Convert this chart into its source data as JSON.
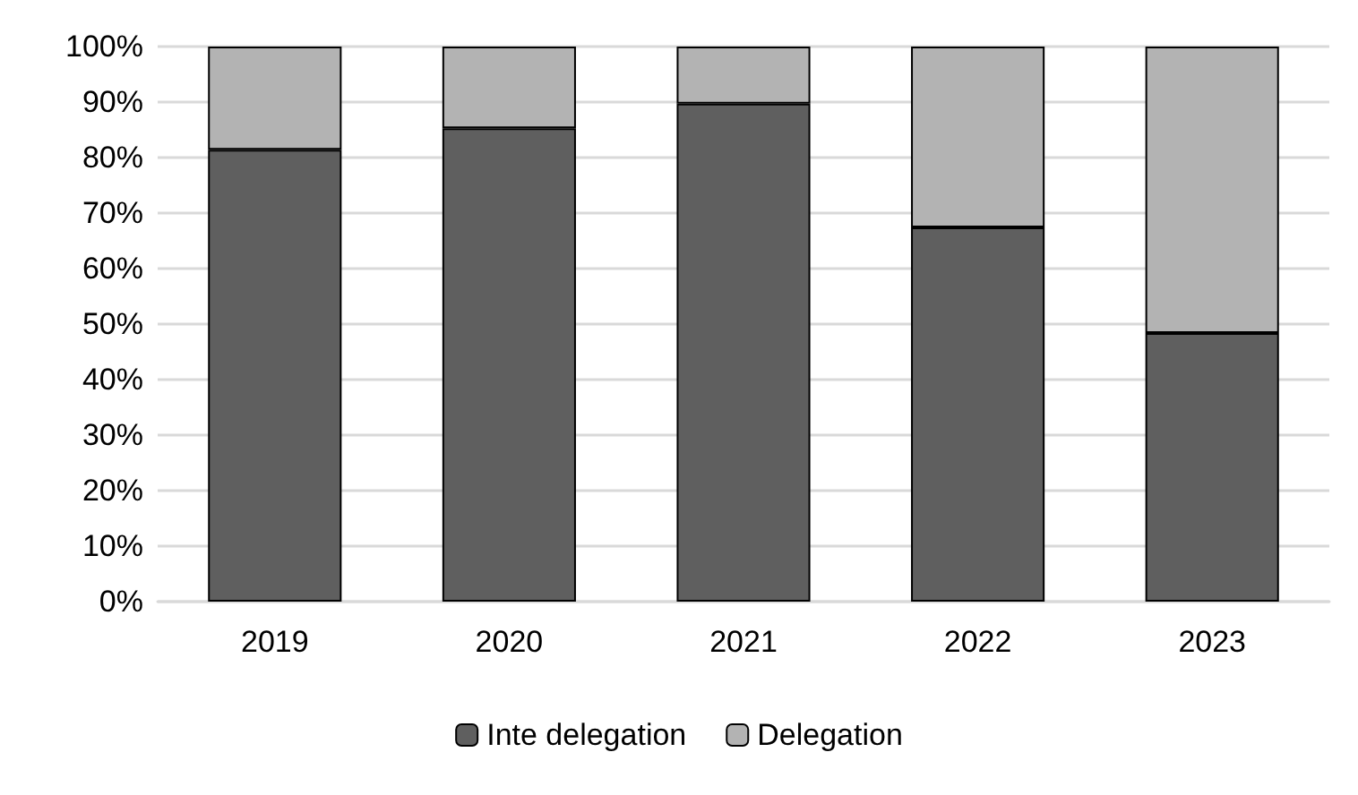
{
  "chart_data": {
    "type": "bar",
    "stacked": true,
    "categories": [
      "2019",
      "2020",
      "2021",
      "2022",
      "2023"
    ],
    "series": [
      {
        "name": "Inte delegation",
        "color": "#5f5f5f",
        "values": [
          81.4,
          85.3,
          89.7,
          67.4,
          48.4
        ]
      },
      {
        "name": "Delegation",
        "color": "#b3b3b3",
        "values": [
          18.6,
          14.7,
          10.3,
          32.6,
          51.6
        ]
      }
    ],
    "ylim": [
      0,
      100
    ],
    "yticks": [
      {
        "value": 0,
        "label": "0%"
      },
      {
        "value": 10,
        "label": "10%"
      },
      {
        "value": 20,
        "label": "20%"
      },
      {
        "value": 30,
        "label": "30%"
      },
      {
        "value": 40,
        "label": "40%"
      },
      {
        "value": 50,
        "label": "50%"
      },
      {
        "value": 60,
        "label": "60%"
      },
      {
        "value": 70,
        "label": "70%"
      },
      {
        "value": 80,
        "label": "80%"
      },
      {
        "value": 90,
        "label": "90%"
      },
      {
        "value": 100,
        "label": "100%"
      }
    ],
    "grid": "y",
    "legend": "bottom"
  }
}
